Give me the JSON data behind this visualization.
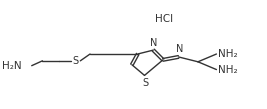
{
  "background": "#ffffff",
  "line_color": "#333333",
  "line_width": 1.0,
  "font_size": 7.5,
  "font_family": "DejaVu Sans",
  "figsize": [
    2.67,
    1.09
  ],
  "dpi": 100,
  "xlim": [
    0,
    267
  ],
  "ylim": [
    0,
    109
  ]
}
